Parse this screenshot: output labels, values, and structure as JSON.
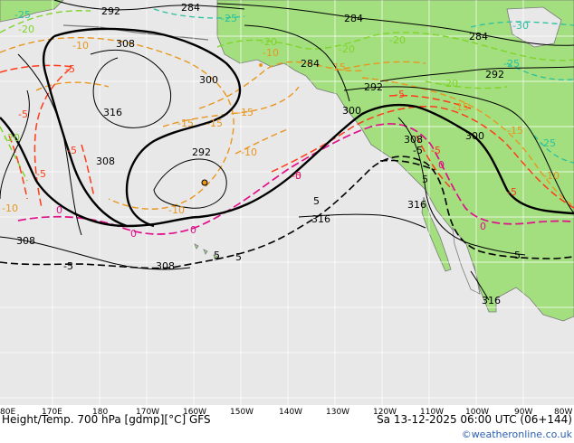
{
  "colors": {
    "ocean": "#e8e8e8",
    "land": "#a3df7e",
    "grid": "#ffffff",
    "coast": "#7a7a7a",
    "height_contour": "#000000",
    "temp_cold": "#7fd42a",
    "temp_cool": "#e8961e",
    "temp_warm": "#ff3b1a",
    "temp_zero": "#e0108a",
    "temp_very_cold": "#2ac0a0",
    "credit": "#2a5db0"
  },
  "footer": {
    "title": "Height/Temp. 700 hPa [gdmp][°C] GFS",
    "valid": "Sa 13-12-2025 06:00 UTC (06+144)",
    "credit": "©weatheronline.co.uk"
  },
  "axis": {
    "lon_labels": [
      "80E",
      "170E",
      "180",
      "170W",
      "160W",
      "150W",
      "140W",
      "130W",
      "120W",
      "110W",
      "100W",
      "90W",
      "80W"
    ]
  },
  "height_labels": [
    "292",
    "284",
    "308",
    "300",
    "316",
    "308",
    "292",
    "284",
    "284",
    "292",
    "300",
    "308",
    "300",
    "316",
    "316",
    "308",
    "308",
    "316",
    "284",
    "292"
  ],
  "temp_labels": {
    "very_cold": [
      "-25",
      "-25",
      "-30",
      "-25",
      "-25"
    ],
    "cold": [
      "-20",
      "-20",
      "-20",
      "-20",
      "-20",
      "-20"
    ],
    "cool": [
      "-10",
      "-10",
      "-15",
      "-15",
      "-15",
      "-15",
      "-10",
      "-10",
      "-10",
      "-15",
      "-15",
      "-10"
    ],
    "warm": [
      "-5",
      "-5",
      "-5",
      "-5",
      "-5",
      "-5",
      "-5",
      "-5"
    ],
    "zero": [
      "0",
      "0",
      "0",
      "0",
      "0",
      "0"
    ],
    "black_five": [
      "5",
      "5",
      "5",
      "-5",
      "5",
      "5",
      "-5"
    ]
  }
}
